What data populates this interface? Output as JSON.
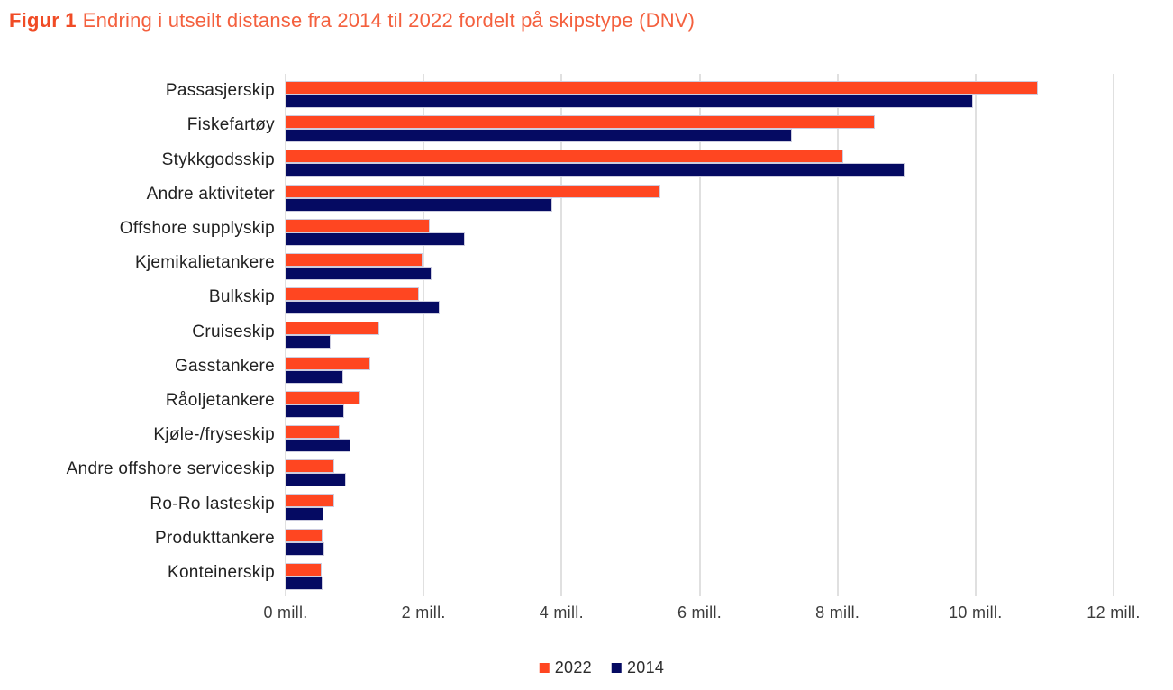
{
  "title": {
    "prefix": "Figur 1",
    "text": "Endring i utseilt distanse fra 2014 til 2022 fordelt på skipstype (DNV)"
  },
  "colors": {
    "title_prefix": "#f04b25",
    "title_text": "#f4603e",
    "series_2022": "#ff4621",
    "series_2014": "#050a62",
    "gridline": "#e0e0e0",
    "bar_border": "#ccccdf",
    "category_label": "#212121",
    "axis_label": "#3c3c3c"
  },
  "chart_data": {
    "type": "bar",
    "orientation": "horizontal",
    "title": "Figur 1 Endring i utseilt distanse fra 2014 til 2022 fordelt på skipstype (DNV)",
    "unit": "mill. (utseilt distanse)",
    "categories": [
      "Passasjerskip",
      "Fiskefartøy",
      "Stykkgodsskip",
      "Andre aktiviteter",
      "Offshore supplyskip",
      "Kjemikalietankere",
      "Bulkskip",
      "Cruiseskip",
      "Gasstankere",
      "Råoljetankere",
      "Kjøle-/fryseskip",
      "Andre offshore serviceskip",
      "Ro-Ro lasteskip",
      "Produkttankere",
      "Konteinerskip"
    ],
    "series": [
      {
        "name": "2022",
        "color": "#ff4621",
        "values": [
          10.9,
          8.54,
          8.08,
          5.43,
          2.09,
          1.98,
          1.93,
          1.36,
          1.23,
          1.09,
          0.78,
          0.7,
          0.71,
          0.53,
          0.52
        ]
      },
      {
        "name": "2014",
        "color": "#050a62",
        "values": [
          9.96,
          7.34,
          8.97,
          3.87,
          2.6,
          2.11,
          2.23,
          0.65,
          0.83,
          0.85,
          0.94,
          0.87,
          0.55,
          0.56,
          0.54
        ]
      }
    ],
    "x_ticks": [
      "0 mill.",
      "2 mill.",
      "4 mill.",
      "6 mill.",
      "8 mill.",
      "10 mill.",
      "12 mill."
    ],
    "xlim": [
      0,
      12
    ],
    "grid": "vertical",
    "legend_position": "bottom-center"
  }
}
